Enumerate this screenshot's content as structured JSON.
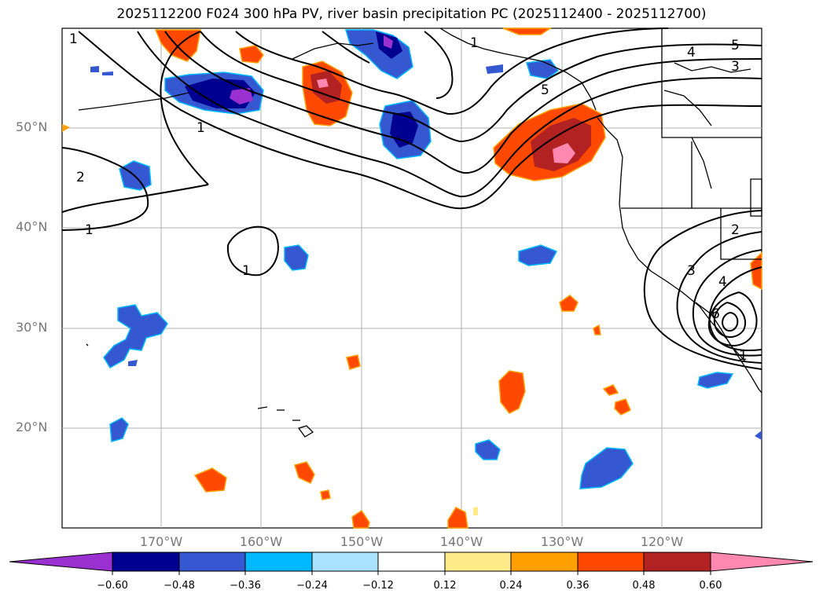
{
  "title": "2025112200 F024 300 hPa PV, river basin precipitation PC (2025112400 - 2025112700)",
  "lat_labels": [
    "50°N",
    "40°N",
    "30°N",
    "20°N"
  ],
  "lon_labels": [
    "170°W",
    "160°W",
    "150°W",
    "140°W",
    "130°W",
    "120°W"
  ],
  "pv_contour_labels": [
    "1",
    "1",
    "1",
    "1",
    "2",
    "2",
    "3",
    "3",
    "4",
    "4",
    "5",
    "5",
    "6",
    "1",
    "1"
  ],
  "colorbar": {
    "ticks": [
      "−0.60",
      "−0.48",
      "−0.36",
      "−0.24",
      "−0.12",
      "0.12",
      "0.24",
      "0.36",
      "0.48",
      "0.60"
    ],
    "colors": [
      "#9b30d0",
      "#000090",
      "#3558d0",
      "#00b8ff",
      "#a8e2ff",
      "#ffffff",
      "#ffea8a",
      "#ffa000",
      "#ff4800",
      "#b22222",
      "#ff88b0"
    ]
  },
  "colors": {
    "ocean": "#ffffff",
    "gridline": "#b0b0b0",
    "axis_label": "#777777",
    "contour": "#000000"
  }
}
